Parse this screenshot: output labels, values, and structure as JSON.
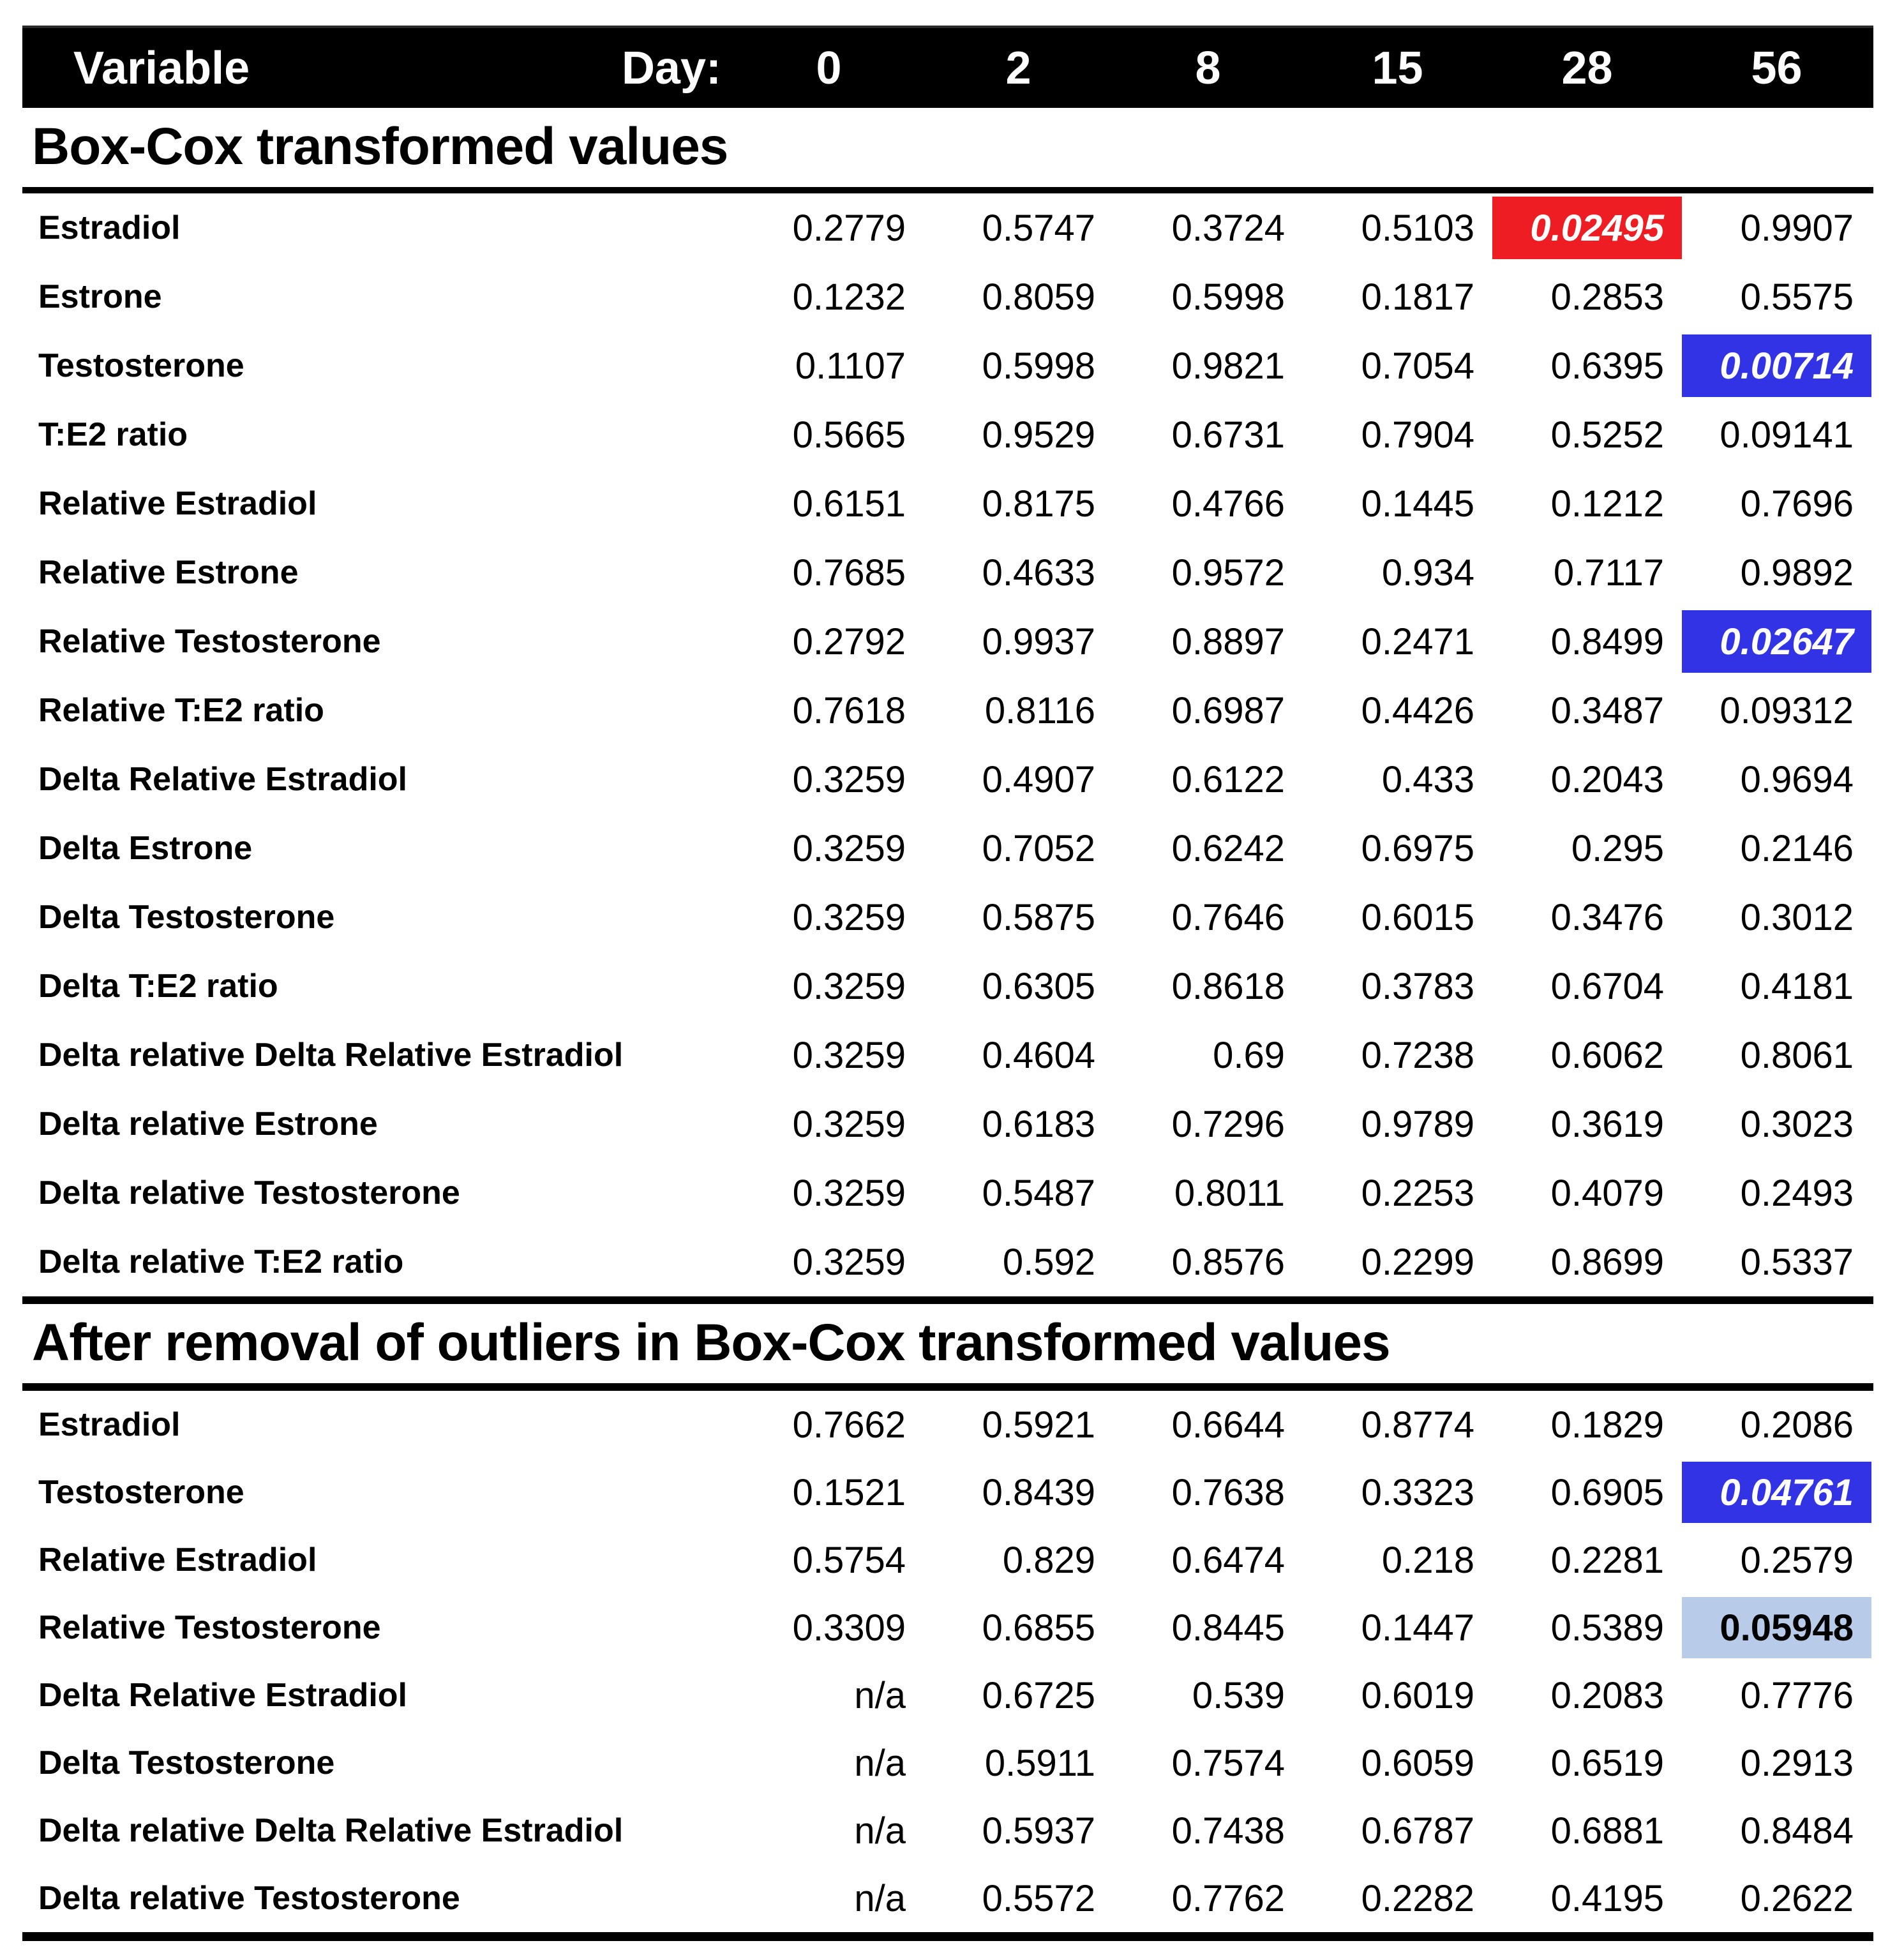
{
  "header": {
    "variable_label": "Variable",
    "day_label": "Day:",
    "days": [
      "0",
      "2",
      "8",
      "15",
      "28",
      "56"
    ]
  },
  "highlight_colors": {
    "red": "#ee1c23",
    "blue": "#3333e6",
    "lightblue": "#b8cbe9"
  },
  "sections": [
    {
      "title": "Box-Cox transformed values",
      "rows": [
        {
          "label": "Estradiol",
          "values": [
            "0.2779",
            "0.5747",
            "0.3724",
            "0.5103",
            "0.02495",
            "0.9907"
          ],
          "hl": {
            "col": 4,
            "style": "red"
          }
        },
        {
          "label": "Estrone",
          "values": [
            "0.1232",
            "0.8059",
            "0.5998",
            "0.1817",
            "0.2853",
            "0.5575"
          ],
          "hl": null
        },
        {
          "label": "Testosterone",
          "values": [
            "0.1107",
            "0.5998",
            "0.9821",
            "0.7054",
            "0.6395",
            "0.00714"
          ],
          "hl": {
            "col": 5,
            "style": "blue"
          }
        },
        {
          "label": "T:E2 ratio",
          "values": [
            "0.5665",
            "0.9529",
            "0.6731",
            "0.7904",
            "0.5252",
            "0.09141"
          ],
          "hl": null
        },
        {
          "label": "Relative Estradiol",
          "values": [
            "0.6151",
            "0.8175",
            "0.4766",
            "0.1445",
            "0.1212",
            "0.7696"
          ],
          "hl": null
        },
        {
          "label": "Relative Estrone",
          "values": [
            "0.7685",
            "0.4633",
            "0.9572",
            "0.934",
            "0.7117",
            "0.9892"
          ],
          "hl": null
        },
        {
          "label": "Relative Testosterone",
          "values": [
            "0.2792",
            "0.9937",
            "0.8897",
            "0.2471",
            "0.8499",
            "0.02647"
          ],
          "hl": {
            "col": 5,
            "style": "blue"
          }
        },
        {
          "label": "Relative T:E2 ratio",
          "values": [
            "0.7618",
            "0.8116",
            "0.6987",
            "0.4426",
            "0.3487",
            "0.09312"
          ],
          "hl": null
        },
        {
          "label": "Delta Relative Estradiol",
          "values": [
            "0.3259",
            "0.4907",
            "0.6122",
            "0.433",
            "0.2043",
            "0.9694"
          ],
          "hl": null
        },
        {
          "label": "Delta Estrone",
          "values": [
            "0.3259",
            "0.7052",
            "0.6242",
            "0.6975",
            "0.295",
            "0.2146"
          ],
          "hl": null
        },
        {
          "label": "Delta Testosterone",
          "values": [
            "0.3259",
            "0.5875",
            "0.7646",
            "0.6015",
            "0.3476",
            "0.3012"
          ],
          "hl": null
        },
        {
          "label": "Delta T:E2 ratio",
          "values": [
            "0.3259",
            "0.6305",
            "0.8618",
            "0.3783",
            "0.6704",
            "0.4181"
          ],
          "hl": null
        },
        {
          "label": "Delta relative Delta Relative Estradiol",
          "values": [
            "0.3259",
            "0.4604",
            "0.69",
            "0.7238",
            "0.6062",
            "0.8061"
          ],
          "hl": null
        },
        {
          "label": "Delta relative Estrone",
          "values": [
            "0.3259",
            "0.6183",
            "0.7296",
            "0.9789",
            "0.3619",
            "0.3023"
          ],
          "hl": null
        },
        {
          "label": "Delta relative Testosterone",
          "values": [
            "0.3259",
            "0.5487",
            "0.8011",
            "0.2253",
            "0.4079",
            "0.2493"
          ],
          "hl": null
        },
        {
          "label": "Delta relative T:E2 ratio",
          "values": [
            "0.3259",
            "0.592",
            "0.8576",
            "0.2299",
            "0.8699",
            "0.5337"
          ],
          "hl": null
        }
      ]
    },
    {
      "title": "After removal of outliers in Box-Cox transformed values",
      "rows": [
        {
          "label": "Estradiol",
          "values": [
            "0.7662",
            "0.5921",
            "0.6644",
            "0.8774",
            "0.1829",
            "0.2086"
          ],
          "hl": null
        },
        {
          "label": "Testosterone",
          "values": [
            "0.1521",
            "0.8439",
            "0.7638",
            "0.3323",
            "0.6905",
            "0.04761"
          ],
          "hl": {
            "col": 5,
            "style": "blue"
          }
        },
        {
          "label": "Relative Estradiol",
          "values": [
            "0.5754",
            "0.829",
            "0.6474",
            "0.218",
            "0.2281",
            "0.2579"
          ],
          "hl": null
        },
        {
          "label": "Relative Testosterone",
          "values": [
            "0.3309",
            "0.6855",
            "0.8445",
            "0.1447",
            "0.5389",
            "0.05948"
          ],
          "hl": {
            "col": 5,
            "style": "lightblue"
          }
        },
        {
          "label": "Delta Relative Estradiol",
          "values": [
            "n/a",
            "0.6725",
            "0.539",
            "0.6019",
            "0.2083",
            "0.7776"
          ],
          "hl": null
        },
        {
          "label": "Delta Testosterone",
          "values": [
            "n/a",
            "0.5911",
            "0.7574",
            "0.6059",
            "0.6519",
            "0.2913"
          ],
          "hl": null
        },
        {
          "label": "Delta relative Delta Relative Estradiol",
          "values": [
            "n/a",
            "0.5937",
            "0.7438",
            "0.6787",
            "0.6881",
            "0.8484"
          ],
          "hl": null
        },
        {
          "label": "Delta relative Testosterone",
          "values": [
            "n/a",
            "0.5572",
            "0.7762",
            "0.2282",
            "0.4195",
            "0.2622"
          ],
          "hl": null
        }
      ]
    }
  ]
}
